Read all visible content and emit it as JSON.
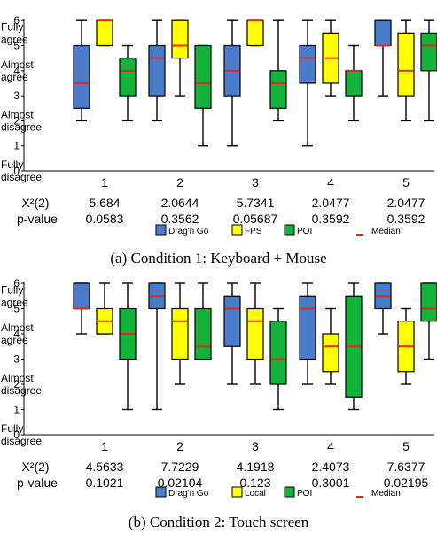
{
  "colors": {
    "dragngo": "#4a7cc9",
    "fps": "#ffff00",
    "local": "#ffff00",
    "poi": "#13b33c",
    "median": "#e8261c",
    "axis": "#000000"
  },
  "chart_data": [
    {
      "type": "box",
      "caption": "(a) Condition 1: Keyboard + Mouse",
      "ylim": [
        0,
        6
      ],
      "y_tick_values": [
        "0",
        "1",
        "2",
        "3",
        "4",
        "5",
        "6"
      ],
      "y_level_labels": [
        {
          "text": "Fully agree",
          "y": 5.5
        },
        {
          "text": "Almost agree",
          "y": 4.0
        },
        {
          "text": "Almost disagree",
          "y": 2.0
        },
        {
          "text": "Fully disagree",
          "y": 0.0
        }
      ],
      "categories": [
        "1",
        "2",
        "3",
        "4",
        "5"
      ],
      "series": [
        {
          "name": "Drag'n Go",
          "color": "#4a7cc9",
          "boxes": [
            {
              "min": 2,
              "q1": 2.5,
              "median": 3.5,
              "q3": 5,
              "max": 6
            },
            {
              "min": 2,
              "q1": 3,
              "median": 4.5,
              "q3": 5,
              "max": 6
            },
            {
              "min": 1,
              "q1": 3,
              "median": 4,
              "q3": 5,
              "max": 6
            },
            {
              "min": 1,
              "q1": 3.5,
              "median": 4.5,
              "q3": 5,
              "max": 6
            },
            {
              "min": 3,
              "q1": 5,
              "median": 5,
              "q3": 6,
              "max": 6
            }
          ]
        },
        {
          "name": "FPS",
          "color": "#ffff00",
          "boxes": [
            {
              "min": 5,
              "q1": 5,
              "median": 6,
              "q3": 6,
              "max": 6
            },
            {
              "min": 3,
              "q1": 4.5,
              "median": 5,
              "q3": 6,
              "max": 6
            },
            {
              "min": 5,
              "q1": 5,
              "median": 6,
              "q3": 6,
              "max": 6
            },
            {
              "min": 3,
              "q1": 3.5,
              "median": 4.5,
              "q3": 5.5,
              "max": 6
            },
            {
              "min": 2,
              "q1": 3,
              "median": 4,
              "q3": 5.5,
              "max": 6
            }
          ]
        },
        {
          "name": "POI",
          "color": "#13b33c",
          "boxes": [
            {
              "min": 2,
              "q1": 3,
              "median": 4,
              "q3": 4.5,
              "max": 5
            },
            {
              "min": 1,
              "q1": 2.5,
              "median": 3.5,
              "q3": 5,
              "max": 5
            },
            {
              "min": 2,
              "q1": 2.5,
              "median": 3.5,
              "q3": 4,
              "max": 6
            },
            {
              "min": 2,
              "q1": 3,
              "median": 4,
              "q3": 4,
              "max": 5
            },
            {
              "min": 2,
              "q1": 4,
              "median": 5,
              "q3": 5.5,
              "max": 6
            }
          ]
        }
      ],
      "stats_labels": {
        "chi": "X²(2)",
        "p": "p-value"
      },
      "chi": [
        "5.684",
        "2.0644",
        "5.7341",
        "2.0477",
        "2.0477"
      ],
      "p": [
        "0.0583",
        "0.3562",
        "0.05687",
        "0.3592",
        "0.3592"
      ],
      "legend": [
        "Drag'n Go",
        "FPS",
        "POI",
        "Median"
      ]
    },
    {
      "type": "box",
      "caption": "(b) Condition 2: Touch screen",
      "ylim": [
        0,
        6
      ],
      "y_tick_values": [
        "0",
        "1",
        "2",
        "3",
        "4",
        "5",
        "6"
      ],
      "y_level_labels": [
        {
          "text": "Fully agree",
          "y": 5.5
        },
        {
          "text": "Almost agree",
          "y": 4.0
        },
        {
          "text": "Almost disagree",
          "y": 2.0
        },
        {
          "text": "Fully disagree",
          "y": 0.0
        }
      ],
      "categories": [
        "1",
        "2",
        "3",
        "4",
        "5"
      ],
      "series": [
        {
          "name": "Drag'n Go",
          "color": "#4a7cc9",
          "boxes": [
            {
              "min": 4,
              "q1": 5,
              "median": 5,
              "q3": 6,
              "max": 6
            },
            {
              "min": 1,
              "q1": 5,
              "median": 5.5,
              "q3": 6,
              "max": 6
            },
            {
              "min": 2,
              "q1": 3.5,
              "median": 5,
              "q3": 5.5,
              "max": 6
            },
            {
              "min": 2,
              "q1": 3,
              "median": 5,
              "q3": 5.5,
              "max": 6
            },
            {
              "min": 4,
              "q1": 5,
              "median": 5.5,
              "q3": 6,
              "max": 6
            }
          ]
        },
        {
          "name": "Local",
          "color": "#ffff00",
          "boxes": [
            {
              "min": 4,
              "q1": 4,
              "median": 4.5,
              "q3": 5,
              "max": 6
            },
            {
              "min": 2,
              "q1": 3,
              "median": 4.5,
              "q3": 5,
              "max": 6
            },
            {
              "min": 2,
              "q1": 3,
              "median": 4.5,
              "q3": 5,
              "max": 6
            },
            {
              "min": 2,
              "q1": 2.5,
              "median": 3.5,
              "q3": 4,
              "max": 5
            },
            {
              "min": 2,
              "q1": 2.5,
              "median": 3.5,
              "q3": 4.5,
              "max": 5
            }
          ]
        },
        {
          "name": "POI",
          "color": "#13b33c",
          "boxes": [
            {
              "min": 1,
              "q1": 3,
              "median": 4,
              "q3": 5,
              "max": 6
            },
            {
              "min": 3,
              "q1": 3,
              "median": 3.5,
              "q3": 5,
              "max": 6
            },
            {
              "min": 1,
              "q1": 2,
              "median": 3,
              "q3": 4.5,
              "max": 5
            },
            {
              "min": 1,
              "q1": 1.5,
              "median": 3.5,
              "q3": 5.5,
              "max": 6
            },
            {
              "min": 3,
              "q1": 4.5,
              "median": 5,
              "q3": 6,
              "max": 6
            }
          ]
        }
      ],
      "stats_labels": {
        "chi": "X²(2)",
        "p": "p-value"
      },
      "chi": [
        "4.5633",
        "7.7229",
        "4.1918",
        "2.4073",
        "7.6377"
      ],
      "p": [
        "0.1021",
        "0.02104",
        "0.123",
        "0.3001",
        "0.02195"
      ],
      "legend": [
        "Drag'n Go",
        "Local",
        "POI",
        "Median"
      ]
    }
  ]
}
